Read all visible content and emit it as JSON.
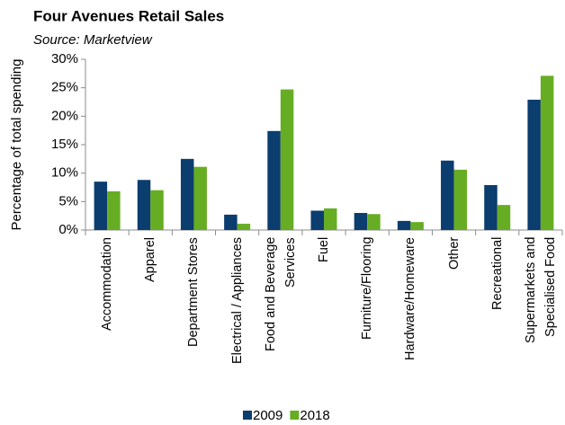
{
  "chart_data": {
    "type": "bar",
    "title": "Four Avenues Retail Sales",
    "subtitle": "Source: Marketview",
    "y_label": "Percentage of total spending",
    "categories": [
      "Accommodation",
      "Apparel",
      "Department Stores",
      "Electrical / Appliances",
      "Food and Beverage Services",
      "Fuel",
      "Furniture/Flooring",
      "Hardware/Homeware",
      "Other",
      "Recreational",
      "Supermarkets and Specialised Food"
    ],
    "series": [
      {
        "name": "2009",
        "color": "#0b3d6e",
        "values": [
          8.5,
          8.8,
          12.5,
          2.7,
          17.4,
          3.4,
          3.0,
          1.6,
          12.2,
          7.9,
          22.9
        ]
      },
      {
        "name": "2018",
        "color": "#66ad23",
        "values": [
          6.8,
          7.0,
          11.1,
          1.1,
          24.7,
          3.8,
          2.8,
          1.4,
          10.6,
          4.4,
          27.1
        ]
      }
    ],
    "ylim": [
      0,
      30
    ],
    "yticks": [
      {
        "value": 0,
        "label": "0%"
      },
      {
        "value": 5,
        "label": "5%"
      },
      {
        "value": 10,
        "label": "10%"
      },
      {
        "value": 15,
        "label": "15%"
      },
      {
        "value": 20,
        "label": "20%"
      },
      {
        "value": 25,
        "label": "25%"
      },
      {
        "value": 30,
        "label": "30%"
      }
    ],
    "legend": "bottom"
  }
}
